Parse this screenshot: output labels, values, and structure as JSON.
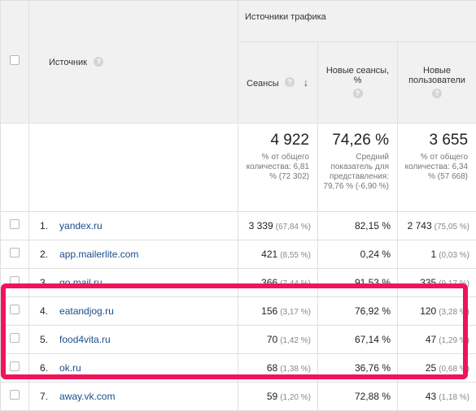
{
  "header": {
    "source_label": "Источник",
    "group_label": "Источники трафика",
    "col_sessions": "Сеансы",
    "col_new_sessions": "Новые сеансы, %",
    "col_new_users": "Новые пользователи",
    "help_glyph": "?"
  },
  "totals": {
    "sessions": {
      "value": "4 922",
      "sub": "% от общего количества: 6,81 % (72 302)"
    },
    "new_sessions": {
      "value": "74,26 %",
      "sub": "Средний показатель для представления: 79,76 % (-6,90 %)"
    },
    "new_users": {
      "value": "3 655",
      "sub": "% от общего количества: 6,34 % (57 668)"
    }
  },
  "rows": [
    {
      "index": "1.",
      "source": "yandex.ru",
      "sessions": "3 339",
      "sessions_pct": "(67,84 %)",
      "new_sessions": "82,15 %",
      "new_users": "2 743",
      "new_users_pct": "(75,05 %)"
    },
    {
      "index": "2.",
      "source": "app.mailerlite.com",
      "sessions": "421",
      "sessions_pct": "(8,55 %)",
      "new_sessions": "0,24 %",
      "new_users": "1",
      "new_users_pct": "(0,03 %)"
    },
    {
      "index": "3.",
      "source": "go.mail.ru",
      "sessions": "366",
      "sessions_pct": "(7,44 %)",
      "new_sessions": "91,53 %",
      "new_users": "335",
      "new_users_pct": "(9,17 %)"
    },
    {
      "index": "4.",
      "source": "eatandjog.ru",
      "sessions": "156",
      "sessions_pct": "(3,17 %)",
      "new_sessions": "76,92 %",
      "new_users": "120",
      "new_users_pct": "(3,28 %)"
    },
    {
      "index": "5.",
      "source": "food4vita.ru",
      "sessions": "70",
      "sessions_pct": "(1,42 %)",
      "new_sessions": "67,14 %",
      "new_users": "47",
      "new_users_pct": "(1,29 %)"
    },
    {
      "index": "6.",
      "source": "ok.ru",
      "sessions": "68",
      "sessions_pct": "(1,38 %)",
      "new_sessions": "36,76 %",
      "new_users": "25",
      "new_users_pct": "(0,68 %)"
    },
    {
      "index": "7.",
      "source": "away.vk.com",
      "sessions": "59",
      "sessions_pct": "(1,20 %)",
      "new_sessions": "72,88 %",
      "new_users": "43",
      "new_users_pct": "(1,18 %)"
    }
  ],
  "colors": {
    "highlight": "#f0145a",
    "link": "#1a4f8b",
    "header_bg": "#f1f1f1"
  },
  "icons": {
    "sort": "sort-arrow-down-icon",
    "help": "help-circle-icon",
    "checkbox": "checkbox-icon"
  }
}
